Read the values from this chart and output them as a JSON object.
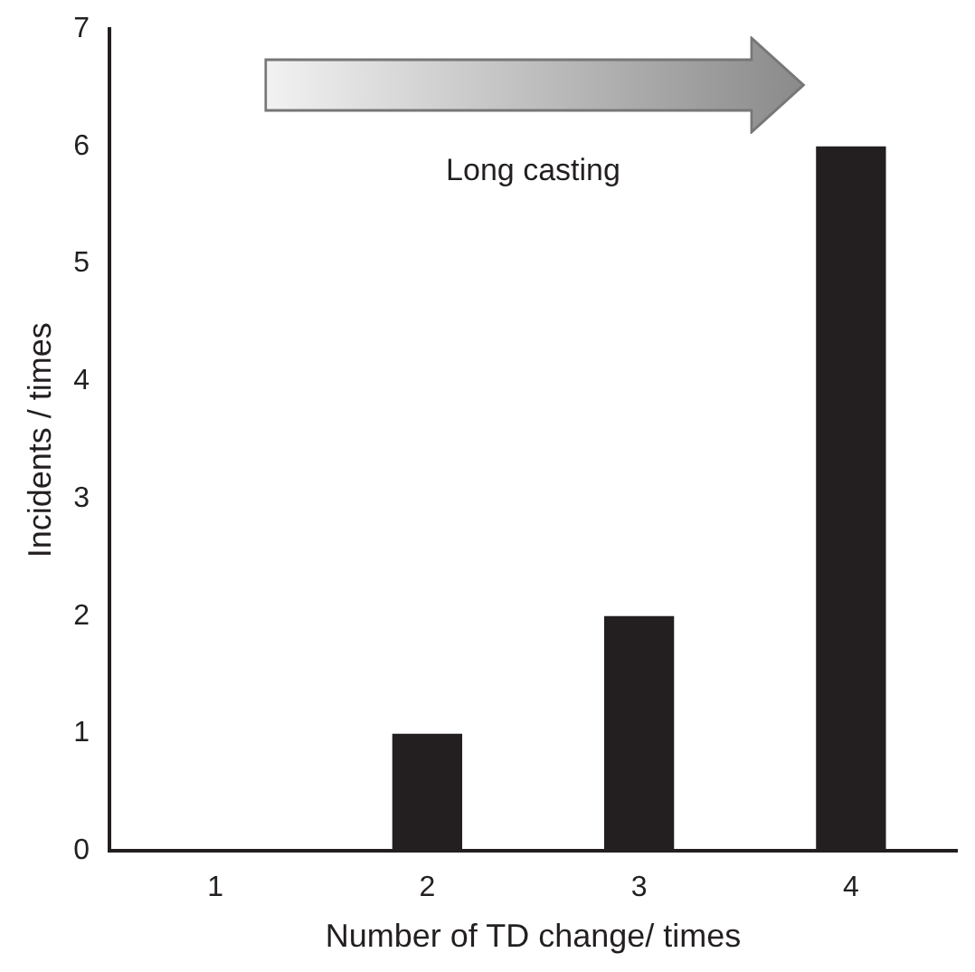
{
  "chart_data": {
    "type": "bar",
    "xlabel": "Number of TD change/ times",
    "ylabel": "Incidents / times",
    "categories": [
      "1",
      "2",
      "3",
      "4"
    ],
    "values": [
      0,
      1,
      2,
      6
    ],
    "color": "#231f20",
    "ylim": [
      0,
      7
    ],
    "yticks": [
      0,
      1,
      2,
      3,
      4,
      5,
      6,
      7
    ],
    "grid": false,
    "legend": false,
    "annotations": [
      "Long casting"
    ]
  }
}
